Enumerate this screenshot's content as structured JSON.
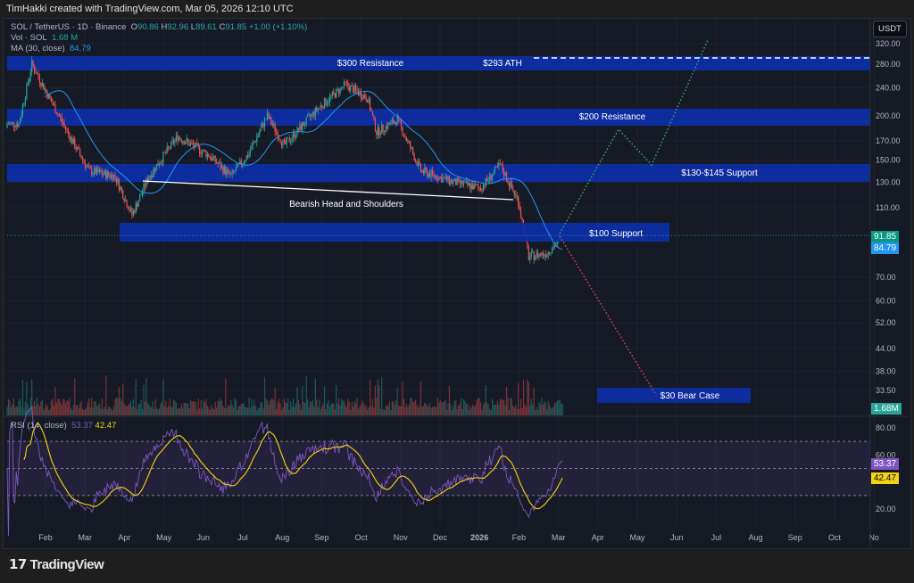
{
  "header": "TimHakki created with TradingView.com, Mar 05, 2026 12:10 UTC",
  "legend": {
    "symbol": "SOL / TetherUS · 1D · Binance",
    "o_label": "O",
    "o": "90.86",
    "h_label": "H",
    "h": "92.96",
    "l_label": "L",
    "l": "89.61",
    "c_label": "C",
    "c": "91.85",
    "change": "+1.00 (+1.10%)",
    "vol_label": "Vol · SOL",
    "vol": "1.68 M",
    "ma_label": "MA (30, close)",
    "ma": "84.79",
    "rsi_label": "RSI (14, close)",
    "rsi": "53.37",
    "rsi_ma": "42.47"
  },
  "currency": "USDT",
  "tags": {
    "price": "91.85",
    "ma": "84.79",
    "vol": "1.68M",
    "rsi": "53.37",
    "rsi_ma": "42.47"
  },
  "brand": "TradingView",
  "colors": {
    "up": "#26a69a",
    "down": "#ef5350",
    "ma": "#2196f3",
    "zone": "#0d2ea8",
    "rsi": "#7e57c2",
    "rsi_ma": "#f5d312"
  },
  "chart_data": {
    "type": "candlestick",
    "price_scale": "log",
    "y_ticks": [
      "320.00",
      "280.00",
      "240.00",
      "200.00",
      "170.00",
      "150.00",
      "130.00",
      "110.00",
      "70.00",
      "60.00",
      "52.00",
      "44.00",
      "38.00",
      "33.50"
    ],
    "x_ticks": [
      "Feb",
      "Mar",
      "Apr",
      "May",
      "Jun",
      "Jul",
      "Aug",
      "Sep",
      "Oct",
      "Nov",
      "Dec",
      "2026",
      "Feb",
      "Mar",
      "Apr",
      "May",
      "Jun",
      "Jul",
      "Aug",
      "Sep",
      "Oct",
      "No"
    ],
    "approx_closes": [
      {
        "date": "2025-01-10",
        "close": 190
      },
      {
        "date": "2025-01-20",
        "close": 280
      },
      {
        "date": "2025-02-01",
        "close": 230
      },
      {
        "date": "2025-02-20",
        "close": 170
      },
      {
        "date": "2025-03-05",
        "close": 140
      },
      {
        "date": "2025-03-25",
        "close": 135
      },
      {
        "date": "2025-04-07",
        "close": 105
      },
      {
        "date": "2025-04-20",
        "close": 135
      },
      {
        "date": "2025-05-12",
        "close": 175
      },
      {
        "date": "2025-06-05",
        "close": 155
      },
      {
        "date": "2025-06-22",
        "close": 135
      },
      {
        "date": "2025-07-05",
        "close": 155
      },
      {
        "date": "2025-07-20",
        "close": 200
      },
      {
        "date": "2025-08-02",
        "close": 165
      },
      {
        "date": "2025-08-28",
        "close": 210
      },
      {
        "date": "2025-09-18",
        "close": 245
      },
      {
        "date": "2025-10-05",
        "close": 225
      },
      {
        "date": "2025-10-12",
        "close": 180
      },
      {
        "date": "2025-10-28",
        "close": 195
      },
      {
        "date": "2025-11-15",
        "close": 140
      },
      {
        "date": "2025-12-10",
        "close": 130
      },
      {
        "date": "2025-12-31",
        "close": 125
      },
      {
        "date": "2026-01-15",
        "close": 145
      },
      {
        "date": "2026-01-29",
        "close": 115
      },
      {
        "date": "2026-02-06",
        "close": 80
      },
      {
        "date": "2026-02-20",
        "close": 82
      },
      {
        "date": "2026-03-05",
        "close": 91.85
      }
    ],
    "rsi_levels": [
      "80.00",
      "60.00",
      "20.00"
    ],
    "annotations": {
      "res300": "$300 Resistance",
      "ath": "$293 ATH",
      "res200": "$200 Resistance",
      "sup130": "$130-$145 Support",
      "hs": "Bearish Head and Shoulders",
      "sup100": "$100 Support",
      "bear": "$30 Bear Case"
    }
  }
}
